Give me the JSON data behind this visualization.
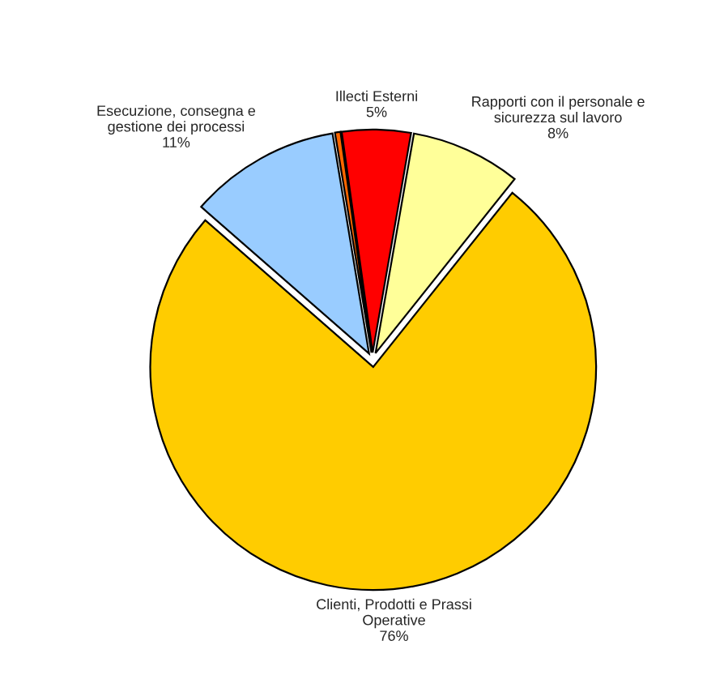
{
  "chart_data": {
    "type": "pie",
    "categories": [
      "Illecti Esterni",
      "Rapporti con il personale e sicurezza sul lavoro",
      "Clienti, Prodotti e Prassi Operative",
      "Esecuzione, consegna e gestione dei processi",
      null
    ],
    "values": [
      5,
      8,
      76,
      11,
      0.4
    ],
    "value_labels": [
      "5%",
      "8%",
      "76%",
      "11%",
      null
    ],
    "colors": [
      "#ff0000",
      "#ffff99",
      "#ffcc00",
      "#99ccff",
      "#ff6600"
    ],
    "legend": false
  }
}
